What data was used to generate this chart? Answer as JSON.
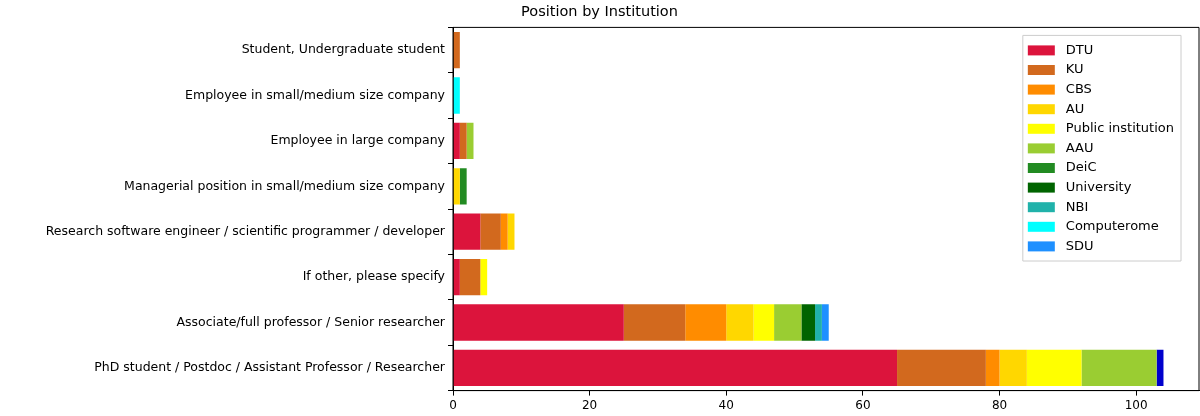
{
  "chart_data": {
    "type": "bar",
    "orientation": "horizontal",
    "stacked": true,
    "title": "Position by Institution",
    "categories": [
      "Student, Undergraduate student",
      "Employee in small/medium size company",
      "Employee in large company",
      "Managerial position in small/medium size company",
      "Research software engineer / scientific programmer / developer",
      "If other, please specify",
      "Associate/full professor / Senior researcher",
      "PhD student / Postdoc / Assistant Professor / Researcher"
    ],
    "series": [
      {
        "name": "DTU",
        "color": "#dc143c",
        "values": [
          0,
          0,
          1,
          0,
          4,
          1,
          25,
          65
        ]
      },
      {
        "name": "KU",
        "color": "#d2691e",
        "values": [
          1,
          0,
          1,
          0,
          3,
          3,
          9,
          13
        ]
      },
      {
        "name": "CBS",
        "color": "#ff8c00",
        "values": [
          0,
          0,
          0,
          0,
          1,
          0,
          6,
          2
        ]
      },
      {
        "name": "AU",
        "color": "#ffd700",
        "values": [
          0,
          0,
          0,
          1,
          1,
          0,
          4,
          4
        ]
      },
      {
        "name": "Public institution",
        "color": "#ffff00",
        "values": [
          0,
          0,
          0,
          0,
          0,
          1,
          3,
          8
        ]
      },
      {
        "name": "AAU",
        "color": "#9acd32",
        "values": [
          0,
          0,
          1,
          0,
          0,
          0,
          4,
          11
        ]
      },
      {
        "name": "DeiC",
        "color": "#228b22",
        "values": [
          0,
          0,
          0,
          1,
          0,
          0,
          0,
          0
        ]
      },
      {
        "name": "University",
        "color": "#006400",
        "values": [
          0,
          0,
          0,
          0,
          0,
          0,
          2,
          0
        ]
      },
      {
        "name": "NBI",
        "color": "#20b2aa",
        "values": [
          0,
          0,
          0,
          0,
          0,
          0,
          1,
          0
        ]
      },
      {
        "name": "Computerome",
        "color": "#00ffff",
        "values": [
          0,
          1,
          0,
          0,
          0,
          0,
          0,
          0
        ]
      },
      {
        "name": "SDU",
        "color": "#1e90ff",
        "values": [
          0,
          0,
          0,
          0,
          0,
          0,
          1,
          0
        ]
      },
      {
        "color": "#0000cd",
        "values": [
          0,
          0,
          0,
          0,
          0,
          0,
          0,
          1
        ]
      }
    ],
    "xlim": [
      0,
      109.2
    ],
    "xticks": [
      0,
      20,
      40,
      60,
      80,
      100
    ],
    "grid": false,
    "legend": "top right"
  }
}
